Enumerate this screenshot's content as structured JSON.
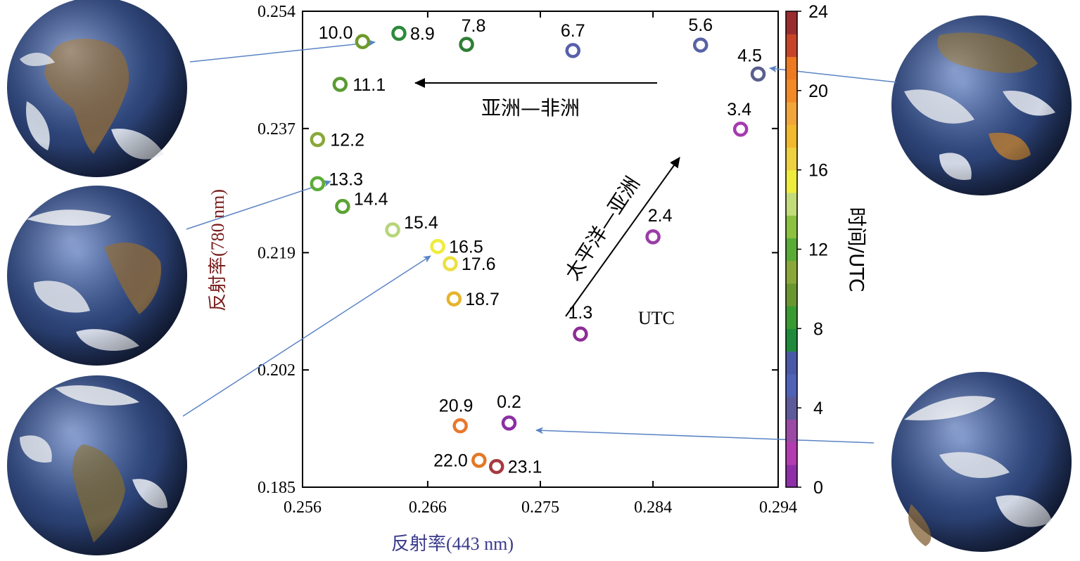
{
  "chart_data": {
    "type": "scatter",
    "xlabel": "反射率(443 nm)",
    "ylabel": "反射率(780 nm)",
    "xlim": [
      0.256,
      0.294
    ],
    "ylim": [
      0.185,
      0.254
    ],
    "xticks": [
      "0.256",
      "0.266",
      "0.275",
      "0.284",
      "0.294"
    ],
    "yticks": [
      "0.185",
      "0.202",
      "0.219",
      "0.237",
      "0.254"
    ],
    "colorbar": {
      "label": "时间/UTC",
      "range": [
        0,
        24
      ],
      "ticks": [
        "0",
        "4",
        "8",
        "12",
        "16",
        "20",
        "24"
      ],
      "colors": [
        "#8e2fa8",
        "#b33cb0",
        "#9a4aa4",
        "#5c5a9a",
        "#4f62b5",
        "#4a58a8",
        "#1f8a3c",
        "#3a9a32",
        "#6a9630",
        "#8aa83a",
        "#5aac36",
        "#8cc240",
        "#c2dc7a",
        "#eeec3c",
        "#eed040",
        "#f2b82e",
        "#f2a63a",
        "#f28a28",
        "#ec7a20",
        "#c84428",
        "#9a2c30"
      ]
    },
    "points": [
      {
        "label": "0.2",
        "x": 0.2725,
        "y": 0.1943,
        "color": "#8b2fa3"
      },
      {
        "label": "1.3",
        "x": 0.2782,
        "y": 0.2072,
        "color": "#8e2c95"
      },
      {
        "label": "2.4",
        "x": 0.284,
        "y": 0.2213,
        "color": "#9a3da8"
      },
      {
        "label": "3.4",
        "x": 0.291,
        "y": 0.2369,
        "color": "#a63ab0"
      },
      {
        "label": "4.5",
        "x": 0.2924,
        "y": 0.2449,
        "color": "#5a5f8e"
      },
      {
        "label": "5.6",
        "x": 0.2878,
        "y": 0.2491,
        "color": "#5863a6"
      },
      {
        "label": "6.7",
        "x": 0.2776,
        "y": 0.2483,
        "color": "#5860ab"
      },
      {
        "label": "7.8",
        "x": 0.2691,
        "y": 0.2492,
        "color": "#2e7e35"
      },
      {
        "label": "8.9",
        "x": 0.2637,
        "y": 0.2508,
        "color": "#2c8a3a"
      },
      {
        "label": "10.0",
        "x": 0.2608,
        "y": 0.2496,
        "color": "#6d9a2a"
      },
      {
        "label": "11.1",
        "x": 0.259,
        "y": 0.2434,
        "color": "#5b9b33"
      },
      {
        "label": "12.2",
        "x": 0.2572,
        "y": 0.2354,
        "color": "#89a838"
      },
      {
        "label": "13.3",
        "x": 0.2572,
        "y": 0.229,
        "color": "#5aac36"
      },
      {
        "label": "14.4",
        "x": 0.2592,
        "y": 0.2257,
        "color": "#5aa332"
      },
      {
        "label": "15.4",
        "x": 0.2632,
        "y": 0.2223,
        "color": "#b6d67a"
      },
      {
        "label": "16.5",
        "x": 0.2668,
        "y": 0.2199,
        "color": "#eeec3c"
      },
      {
        "label": "17.6",
        "x": 0.2678,
        "y": 0.2174,
        "color": "#ece040"
      },
      {
        "label": "18.7",
        "x": 0.2681,
        "y": 0.2123,
        "color": "#e6b42e"
      },
      {
        "label": "20.9",
        "x": 0.2686,
        "y": 0.1939,
        "color": "#e8782c"
      },
      {
        "label": "22.0",
        "x": 0.2701,
        "y": 0.1889,
        "color": "#e27826"
      },
      {
        "label": "23.1",
        "x": 0.2715,
        "y": 0.188,
        "color": "#a63a42"
      }
    ],
    "annotations": {
      "route_1": "亚洲—非洲",
      "route_2": "太平洋—亚洲",
      "utc_note": "UTC"
    },
    "grid": false,
    "legend": "colorbar-right"
  },
  "colors": {
    "ylabel_color": "#7a1d1d",
    "xlabel_color": "#3a3a8c",
    "arrow_color": "#000000",
    "connector_color": "#5b84c6"
  },
  "earth_images": [
    {
      "id": "earth-africa-europe",
      "icon": "earth-globe-icon"
    },
    {
      "id": "earth-atlantic",
      "icon": "earth-globe-icon"
    },
    {
      "id": "earth-americas",
      "icon": "earth-globe-icon"
    },
    {
      "id": "earth-asia-australia",
      "icon": "earth-globe-icon"
    },
    {
      "id": "earth-pacific",
      "icon": "earth-globe-icon"
    }
  ]
}
